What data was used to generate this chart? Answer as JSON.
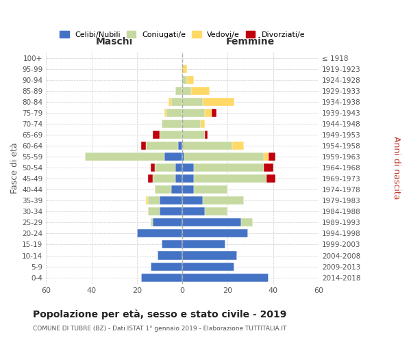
{
  "age_groups": [
    "100+",
    "95-99",
    "90-94",
    "85-89",
    "80-84",
    "75-79",
    "70-74",
    "65-69",
    "60-64",
    "55-59",
    "50-54",
    "45-49",
    "40-44",
    "35-39",
    "30-34",
    "25-29",
    "20-24",
    "15-19",
    "10-14",
    "5-9",
    "0-4"
  ],
  "birth_years": [
    "≤ 1918",
    "1919-1923",
    "1924-1928",
    "1929-1933",
    "1934-1938",
    "1939-1943",
    "1944-1948",
    "1949-1953",
    "1954-1958",
    "1959-1963",
    "1964-1968",
    "1969-1973",
    "1974-1978",
    "1979-1983",
    "1984-1988",
    "1989-1993",
    "1994-1998",
    "1999-2003",
    "2004-2008",
    "2009-2013",
    "2014-2018"
  ],
  "males": {
    "celibi": [
      0,
      0,
      0,
      0,
      0,
      0,
      0,
      0,
      2,
      8,
      3,
      3,
      5,
      10,
      10,
      13,
      20,
      9,
      11,
      14,
      18
    ],
    "coniugati": [
      0,
      0,
      0,
      3,
      5,
      7,
      9,
      10,
      14,
      35,
      9,
      10,
      7,
      5,
      5,
      1,
      0,
      0,
      0,
      0,
      0
    ],
    "vedovi": [
      0,
      0,
      0,
      0,
      1,
      1,
      0,
      0,
      0,
      0,
      0,
      0,
      0,
      1,
      0,
      0,
      0,
      0,
      0,
      0,
      0
    ],
    "divorziati": [
      0,
      0,
      0,
      0,
      0,
      0,
      0,
      3,
      2,
      0,
      2,
      2,
      0,
      0,
      0,
      0,
      0,
      0,
      0,
      0,
      0
    ]
  },
  "females": {
    "nubili": [
      0,
      0,
      0,
      0,
      0,
      0,
      0,
      0,
      0,
      1,
      5,
      5,
      5,
      9,
      10,
      26,
      29,
      19,
      24,
      23,
      38
    ],
    "coniugate": [
      0,
      0,
      2,
      4,
      9,
      10,
      8,
      10,
      22,
      35,
      31,
      32,
      15,
      18,
      10,
      5,
      0,
      0,
      0,
      0,
      0
    ],
    "vedove": [
      0,
      2,
      3,
      8,
      14,
      3,
      2,
      0,
      5,
      2,
      0,
      0,
      0,
      0,
      0,
      0,
      0,
      0,
      0,
      0,
      0
    ],
    "divorziate": [
      0,
      0,
      0,
      0,
      0,
      2,
      0,
      1,
      0,
      3,
      4,
      4,
      0,
      0,
      0,
      0,
      0,
      0,
      0,
      0,
      0
    ]
  },
  "colors": {
    "celibi": "#4472C4",
    "coniugati": "#c5d9a0",
    "vedovi": "#FFD966",
    "divorziati": "#C0000C"
  },
  "title": "Popolazione per età, sesso e stato civile - 2019",
  "subtitle": "COMUNE DI TUBRE (BZ) - Dati ISTAT 1° gennaio 2019 - Elaborazione TUTTITALIA.IT",
  "xlabel_left": "Maschi",
  "xlabel_right": "Femmine",
  "ylabel_left": "Fasce di età",
  "ylabel_right": "Anni di nascita",
  "xlim": 60,
  "legend_labels": [
    "Celibi/Nubili",
    "Coniugati/e",
    "Vedovi/e",
    "Divorziati/e"
  ]
}
